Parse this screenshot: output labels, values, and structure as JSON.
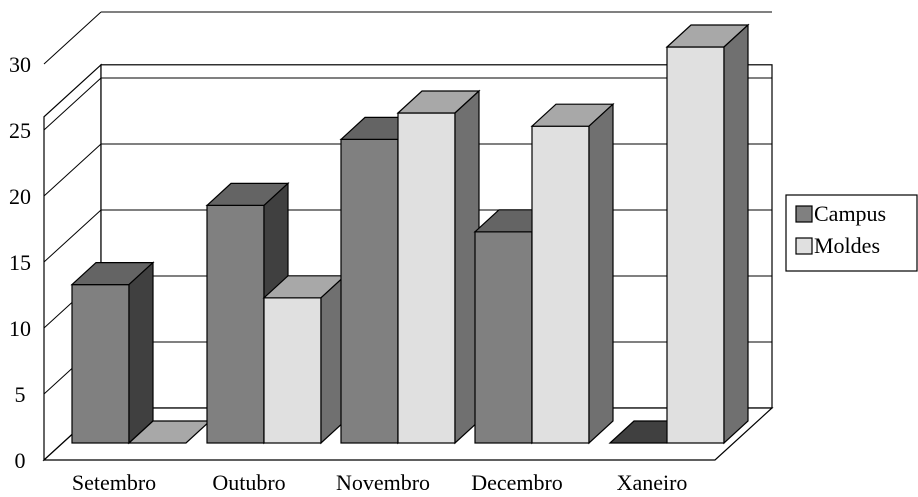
{
  "chart_data": {
    "type": "bar",
    "style": "3d-clustered",
    "title": "",
    "xlabel": "",
    "ylabel": "",
    "categories": [
      "Setembro",
      "Outubro",
      "Novembro",
      "Decembro",
      "Xaneiro"
    ],
    "series": [
      {
        "name": "Campus",
        "values": [
          12,
          18,
          23,
          16,
          0
        ],
        "color": "#808080"
      },
      {
        "name": "Moldes",
        "values": [
          0,
          11,
          25,
          24,
          30
        ],
        "color": "#e0e0e0"
      }
    ],
    "ylim": [
      0,
      30
    ],
    "yticks": [
      "0",
      "5",
      "10",
      "15",
      "20",
      "25",
      "30"
    ],
    "grid": true,
    "legend_position": "right"
  }
}
